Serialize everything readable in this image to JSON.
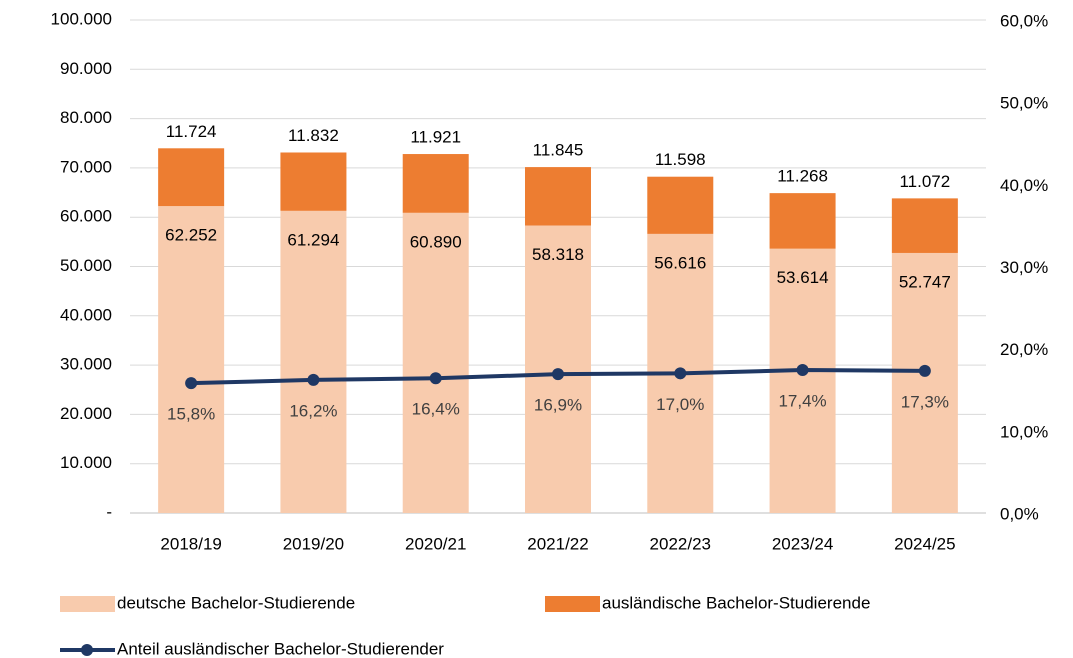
{
  "chart_data": {
    "type": "bar-line",
    "categories": [
      "2018/19",
      "2019/20",
      "2020/21",
      "2021/22",
      "2022/23",
      "2023/24",
      "2024/25"
    ],
    "series": [
      {
        "name": "deutsche Bachelor-Studierende",
        "color": "#f8cbad",
        "type": "bar",
        "stacked": true,
        "values": [
          62252,
          61294,
          60890,
          58318,
          56616,
          53614,
          52747
        ],
        "value_labels": [
          "62.252",
          "61.294",
          "60.890",
          "58.318",
          "56.616",
          "53.614",
          "52.747"
        ]
      },
      {
        "name": "ausländische Bachelor-Studierende",
        "color": "#ed7d31",
        "type": "bar",
        "stacked": true,
        "values": [
          11724,
          11832,
          11921,
          11845,
          11598,
          11268,
          11072
        ],
        "value_labels": [
          "11.724",
          "11.832",
          "11.921",
          "11.845",
          "11.598",
          "11.268",
          "11.072"
        ]
      },
      {
        "name": "Anteil ausländischer Bachelor-Studierender",
        "color": "#1f3864",
        "type": "line",
        "axis": "y2",
        "values": [
          15.8,
          16.2,
          16.4,
          16.9,
          17.0,
          17.4,
          17.3
        ],
        "value_labels": [
          "15,8%",
          "16,2%",
          "16,4%",
          "16,9%",
          "17,0%",
          "17,4%",
          "17,3%"
        ]
      }
    ],
    "ylim": [
      0,
      100000
    ],
    "yticks": [
      {
        "value": 0,
        "label": "-"
      },
      {
        "value": 10000,
        "label": "10.000"
      },
      {
        "value": 20000,
        "label": "20.000"
      },
      {
        "value": 30000,
        "label": "30.000"
      },
      {
        "value": 40000,
        "label": "40.000"
      },
      {
        "value": 50000,
        "label": "50.000"
      },
      {
        "value": 60000,
        "label": "60.000"
      },
      {
        "value": 70000,
        "label": "70.000"
      },
      {
        "value": 80000,
        "label": "80.000"
      },
      {
        "value": 90000,
        "label": "90.000"
      },
      {
        "value": 100000,
        "label": "100.000"
      }
    ],
    "y2lim": [
      0,
      60
    ],
    "y2ticks": [
      {
        "value": 0,
        "label": "0,0%"
      },
      {
        "value": 10,
        "label": "10,0%"
      },
      {
        "value": 20,
        "label": "20,0%"
      },
      {
        "value": 30,
        "label": "30,0%"
      },
      {
        "value": 40,
        "label": "40,0%"
      },
      {
        "value": 50,
        "label": "50,0%"
      },
      {
        "value": 60,
        "label": "60,0%"
      }
    ],
    "grid": true,
    "legend": "bottom"
  }
}
